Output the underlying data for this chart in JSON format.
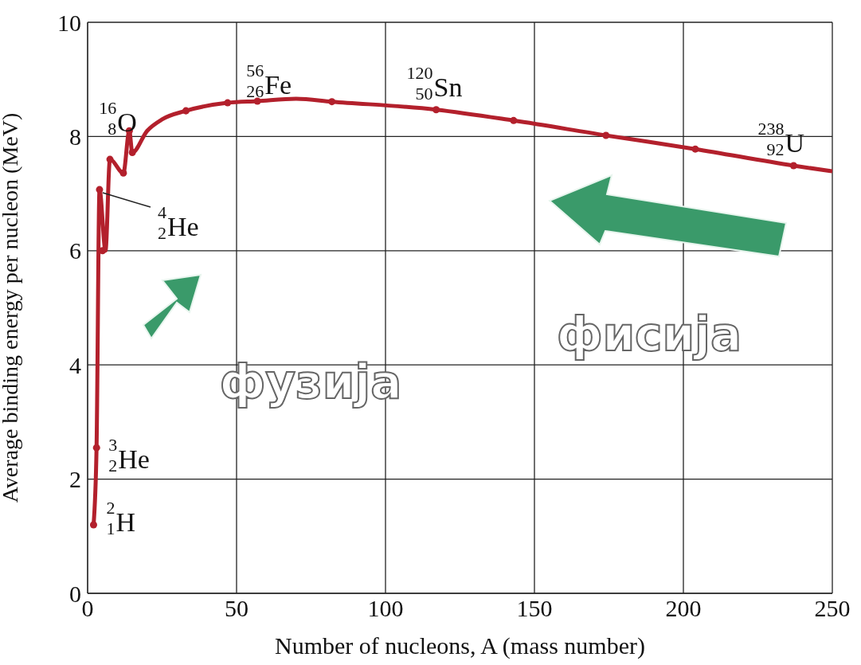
{
  "chart_data": {
    "type": "line",
    "xlabel": "Number of nucleons, A (mass number)",
    "ylabel": "Average binding energy per nucleon (MeV)",
    "xlim": [
      0,
      250
    ],
    "xticks": [
      0,
      50,
      100,
      150,
      200,
      250
    ],
    "ylim": [
      0,
      10
    ],
    "yticks": [
      0,
      2,
      4,
      6,
      8,
      10
    ],
    "grid": true,
    "series": [
      {
        "color": "#b3202c",
        "marker": "none",
        "x": [
          2,
          3,
          4,
          6,
          7.5,
          12,
          14,
          15,
          20,
          25,
          33,
          47,
          57,
          70,
          82,
          117,
          143,
          174,
          204,
          237,
          250
        ],
        "values": [
          1.2,
          2.55,
          7.07,
          6.0,
          7.6,
          7.36,
          8.1,
          7.72,
          8.1,
          8.3,
          8.45,
          8.59,
          8.62,
          8.66,
          8.61,
          8.47,
          8.28,
          8.02,
          7.78,
          7.49,
          7.39
        ]
      },
      {
        "type": "scatter",
        "color": "#b3202c",
        "marker": "circle",
        "x": [
          2,
          3,
          4,
          5,
          7.5,
          12,
          14,
          15,
          33,
          47,
          57,
          82,
          117,
          143,
          174,
          204,
          237
        ],
        "values": [
          1.2,
          2.55,
          7.07,
          6.0,
          7.6,
          7.36,
          8.1,
          7.72,
          8.45,
          8.59,
          8.62,
          8.61,
          8.47,
          8.28,
          8.02,
          7.78,
          7.49
        ]
      }
    ],
    "annotations": [
      {
        "text": "$^{2}$$_{1}$H",
        "x": 2,
        "y": 1.2
      },
      {
        "text": "$^{3}$$_{2}$He",
        "x": 3,
        "y": 2.55
      },
      {
        "text": "$^{4}$$_{2}$He",
        "x": 4,
        "y": 7.07
      },
      {
        "text": "$^{16}$$_{8}$O",
        "x": 14,
        "y": 8.1
      },
      {
        "text": "$^{56}$$_{26}$Fe",
        "x": 57,
        "y": 8.62
      },
      {
        "text": "$^{120}$$_{50}$Sn",
        "x": 117,
        "y": 8.47
      },
      {
        "text": "$^{238}$$_{92}$U",
        "x": 237,
        "y": 7.49
      },
      "фузија",
      "фисија"
    ]
  }
}
